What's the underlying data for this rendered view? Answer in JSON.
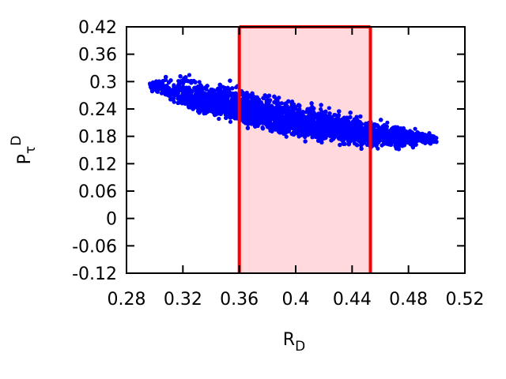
{
  "chart_data": {
    "type": "scatter",
    "title": "",
    "xlabel": {
      "main": "R",
      "sub": "D"
    },
    "ylabel": {
      "main": "P",
      "sub": "τ",
      "sup": "D"
    },
    "xlim": [
      0.28,
      0.52
    ],
    "ylim": [
      -0.12,
      0.42
    ],
    "xticks": [
      "0.28",
      "0.32",
      "0.36",
      "0.4",
      "0.44",
      "0.48",
      "0.52"
    ],
    "yticks": [
      "0.42",
      "0.36",
      "0.3",
      "0.24",
      "0.18",
      "0.12",
      "0.06",
      "0",
      "-0.06",
      "-0.12"
    ],
    "grid": false,
    "highlight_band": {
      "x_range": [
        0.36,
        0.453
      ],
      "fill": "#ffd9dc",
      "edge": "#ff0000"
    },
    "series": [
      {
        "color": "#0000ff",
        "marker": "circle",
        "centerline": {
          "x": [
            0.296,
            0.32,
            0.36,
            0.4,
            0.44,
            0.47,
            0.5
          ],
          "y": [
            0.29,
            0.27,
            0.24,
            0.21,
            0.19,
            0.18,
            0.172
          ]
        },
        "envelope": {
          "x": [
            0.296,
            0.32,
            0.36,
            0.4,
            0.44,
            0.47,
            0.5
          ],
          "y_low": [
            0.28,
            0.235,
            0.2,
            0.17,
            0.15,
            0.145,
            0.16
          ],
          "y_high": [
            0.302,
            0.325,
            0.3,
            0.265,
            0.235,
            0.215,
            0.185
          ]
        },
        "num_points": 9000
      }
    ]
  }
}
